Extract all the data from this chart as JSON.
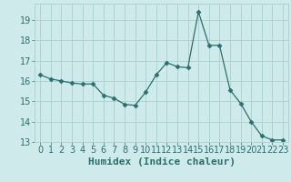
{
  "x": [
    0,
    1,
    2,
    3,
    4,
    5,
    6,
    7,
    8,
    9,
    10,
    11,
    12,
    13,
    14,
    15,
    16,
    17,
    18,
    19,
    20,
    21,
    22,
    23
  ],
  "y": [
    16.3,
    16.1,
    16.0,
    15.9,
    15.85,
    15.85,
    15.3,
    15.15,
    14.85,
    14.8,
    15.45,
    16.3,
    16.9,
    16.7,
    16.65,
    19.4,
    17.75,
    17.75,
    15.55,
    14.9,
    14.0,
    13.3,
    13.1,
    13.1
  ],
  "line_color": "#2d6e6e",
  "marker": "D",
  "marker_size": 2.5,
  "bg_color": "#ceeaea",
  "grid_color": "#aacfcf",
  "xlabel": "Humidex (Indice chaleur)",
  "ylim": [
    13,
    19.8
  ],
  "xlim": [
    -0.5,
    23.5
  ],
  "yticks": [
    13,
    14,
    15,
    16,
    17,
    18,
    19
  ],
  "xticks": [
    0,
    1,
    2,
    3,
    4,
    5,
    6,
    7,
    8,
    9,
    10,
    11,
    12,
    13,
    14,
    15,
    16,
    17,
    18,
    19,
    20,
    21,
    22,
    23
  ],
  "tick_color": "#2d6e6e",
  "xlabel_fontsize": 8,
  "tick_fontsize": 7
}
